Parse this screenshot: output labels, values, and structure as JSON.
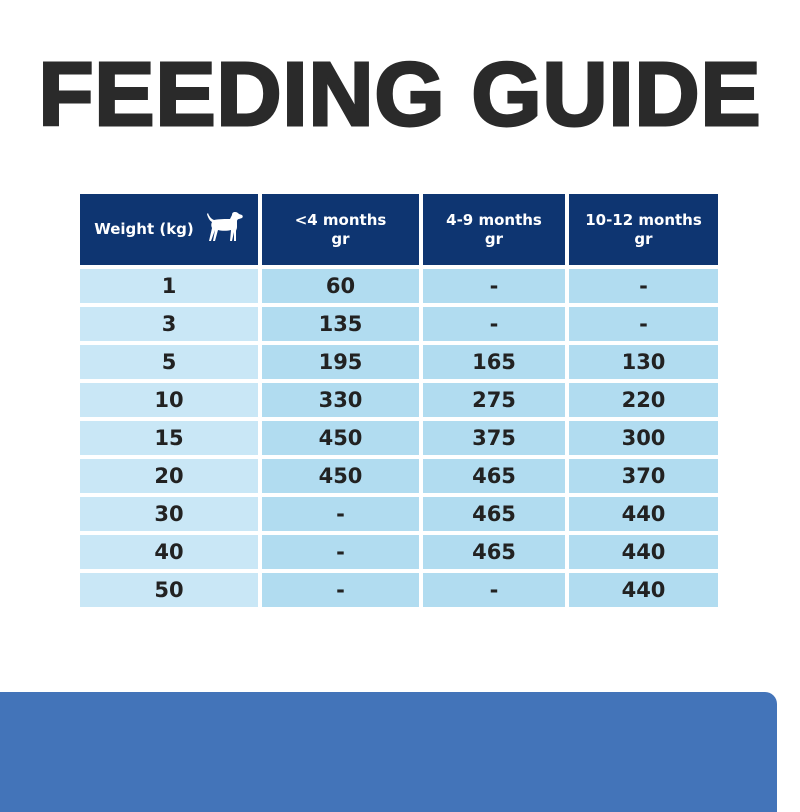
{
  "title": "FEEDING GUIDE",
  "table": {
    "headers": [
      {
        "line1": "Weight (kg)",
        "icon": "dog-icon"
      },
      {
        "line1": "<4 months",
        "line2": "gr"
      },
      {
        "line1": "4-9 months",
        "line2": "gr"
      },
      {
        "line1": "10-12 months",
        "line2": "gr"
      }
    ],
    "rows": [
      [
        "1",
        "60",
        "-",
        "-"
      ],
      [
        "3",
        "135",
        "-",
        "-"
      ],
      [
        "5",
        "195",
        "165",
        "130"
      ],
      [
        "10",
        "330",
        "275",
        "220"
      ],
      [
        "15",
        "450",
        "375",
        "300"
      ],
      [
        "20",
        "450",
        "465",
        "370"
      ],
      [
        "30",
        "-",
        "465",
        "440"
      ],
      [
        "40",
        "-",
        "465",
        "440"
      ],
      [
        "50",
        "-",
        "-",
        "440"
      ]
    ]
  },
  "colors": {
    "header": "#0e3571",
    "cell": "#b1dcf0",
    "first_col": "#c9e7f6",
    "panel": "#4374b9",
    "title": "#2a2a2a"
  }
}
